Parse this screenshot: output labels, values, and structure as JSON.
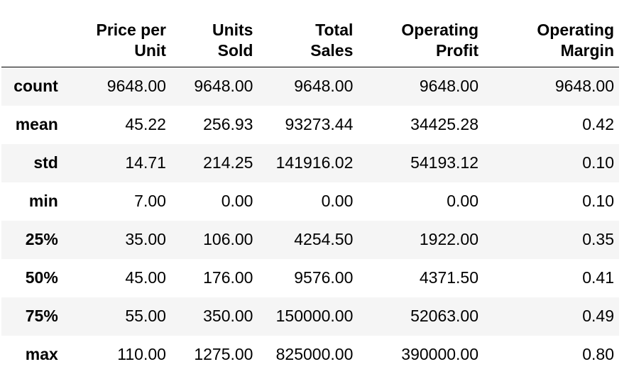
{
  "table": {
    "index_header": "",
    "columns": [
      "Price per\nUnit",
      "Units\nSold",
      "Total\nSales",
      "Operating\nProfit",
      "Operating\nMargin"
    ],
    "rows": [
      {
        "label": "count",
        "values": [
          "9648.00",
          "9648.00",
          "9648.00",
          "9648.00",
          "9648.00"
        ]
      },
      {
        "label": "mean",
        "values": [
          "45.22",
          "256.93",
          "93273.44",
          "34425.28",
          "0.42"
        ]
      },
      {
        "label": "std",
        "values": [
          "14.71",
          "214.25",
          "141916.02",
          "54193.12",
          "0.10"
        ]
      },
      {
        "label": "min",
        "values": [
          "7.00",
          "0.00",
          "0.00",
          "0.00",
          "0.10"
        ]
      },
      {
        "label": "25%",
        "values": [
          "35.00",
          "106.00",
          "4254.50",
          "1922.00",
          "0.35"
        ]
      },
      {
        "label": "50%",
        "values": [
          "45.00",
          "176.00",
          "9576.00",
          "4371.50",
          "0.41"
        ]
      },
      {
        "label": "75%",
        "values": [
          "55.00",
          "350.00",
          "150000.00",
          "52063.00",
          "0.49"
        ]
      },
      {
        "label": "max",
        "values": [
          "110.00",
          "1275.00",
          "825000.00",
          "390000.00",
          "0.80"
        ]
      }
    ]
  },
  "colors": {
    "stripe": "#f5f5f5",
    "text": "#000000",
    "header_rule": "#000000"
  }
}
